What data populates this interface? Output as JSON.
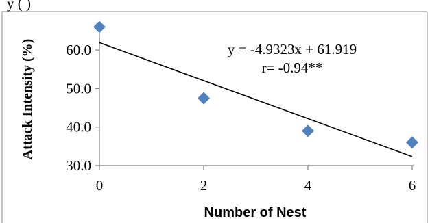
{
  "header_fragment": "y                                  (        )",
  "chart_data": {
    "type": "scatter",
    "xlabel": "Number of Nest",
    "ylabel": "Attack Intensity (%)",
    "xlim": [
      0,
      6
    ],
    "ylim": [
      30,
      66
    ],
    "x_ticks": [
      0,
      2,
      4,
      6
    ],
    "y_ticks": [
      30.0,
      40.0,
      50.0,
      60.0
    ],
    "x_tick_labels": [
      "0",
      "2",
      "4",
      "6"
    ],
    "y_tick_labels": [
      "30.0",
      "40.0",
      "50.0",
      "60.0"
    ],
    "points": [
      {
        "x": 0,
        "y": 66.0
      },
      {
        "x": 2,
        "y": 47.5
      },
      {
        "x": 4,
        "y": 39.0
      },
      {
        "x": 6,
        "y": 36.0
      }
    ],
    "trendline": {
      "slope": -4.9323,
      "intercept": 61.919,
      "x_range": [
        0,
        6
      ]
    },
    "annotations": [
      "y = -4.9323x + 61.919",
      "r= -0.94**"
    ],
    "marker_color": "#4F81BD",
    "line_color": "#000000",
    "grid": false,
    "legend": "none"
  }
}
